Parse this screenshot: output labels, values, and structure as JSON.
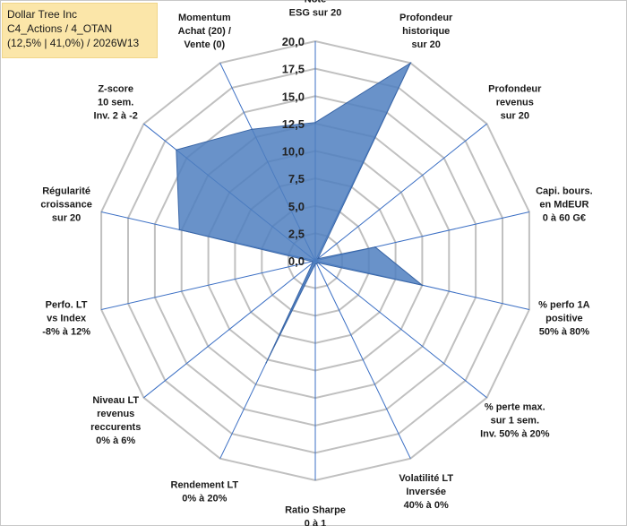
{
  "legend": {
    "line1": "Dollar Tree Inc",
    "line2": "C4_Actions / 4_OTAN",
    "line3": "(12,5% | 41,0%) / 2026W13"
  },
  "colors": {
    "fill": "#4f7fbf",
    "stroke": "#3a66a6",
    "grid": "#c0c0c0",
    "spoke": "#3b6fc4"
  },
  "chart_data": {
    "type": "radar",
    "title": "Dollar Tree Inc",
    "rmax": 20,
    "ticks": [
      "0,0",
      "2,5",
      "5,0",
      "7,5",
      "10,0",
      "12,5",
      "15,0",
      "17,5",
      "20,0"
    ],
    "tick_values": [
      0,
      2.5,
      5,
      7.5,
      10,
      12.5,
      15,
      17.5,
      20
    ],
    "axes": [
      {
        "label": [
          "Note",
          "ESG sur 20"
        ],
        "value": 12.6
      },
      {
        "label": [
          "Profondeur",
          "historique",
          "sur 20"
        ],
        "value": 20.0
      },
      {
        "label": [
          "Profondeur",
          "revenus",
          "sur 20"
        ],
        "value": 0.3
      },
      {
        "label": [
          "Capi. bours.",
          "en MdEUR",
          "0 à 60 G€"
        ],
        "value": 5.6
      },
      {
        "label": [
          "% perfo 1A",
          "positive",
          "50% à 80%"
        ],
        "value": 10.0
      },
      {
        "label": [
          "% perte max.",
          "sur 1 sem.",
          "Inv. 50% à 20%"
        ],
        "value": 0.3
      },
      {
        "label": [
          "Volatilité LT",
          "Inversée",
          "40% à 0%"
        ],
        "value": 0.3
      },
      {
        "label": [
          "Ratio Sharpe",
          "0 à 1"
        ],
        "value": 0.3
      },
      {
        "label": [
          "Rendement LT",
          "0% à 20%"
        ],
        "value": 10.3
      },
      {
        "label": [
          "Niveau LT",
          "revenus",
          "reccurents",
          "0% à 6%"
        ],
        "value": 0.3
      },
      {
        "label": [
          "Perfo. LT",
          "vs Index",
          "-8% à 12%"
        ],
        "value": 0.3
      },
      {
        "label": [
          "Régularité",
          "croissance",
          "sur 20"
        ],
        "value": 12.7
      },
      {
        "label": [
          "Z-score",
          "10 sem.",
          "Inv. 2 à -2"
        ],
        "value": 16.2
      },
      {
        "label": [
          "Momentum",
          "Achat (20) /",
          "Vente (0)"
        ],
        "value": 13.3
      }
    ]
  }
}
